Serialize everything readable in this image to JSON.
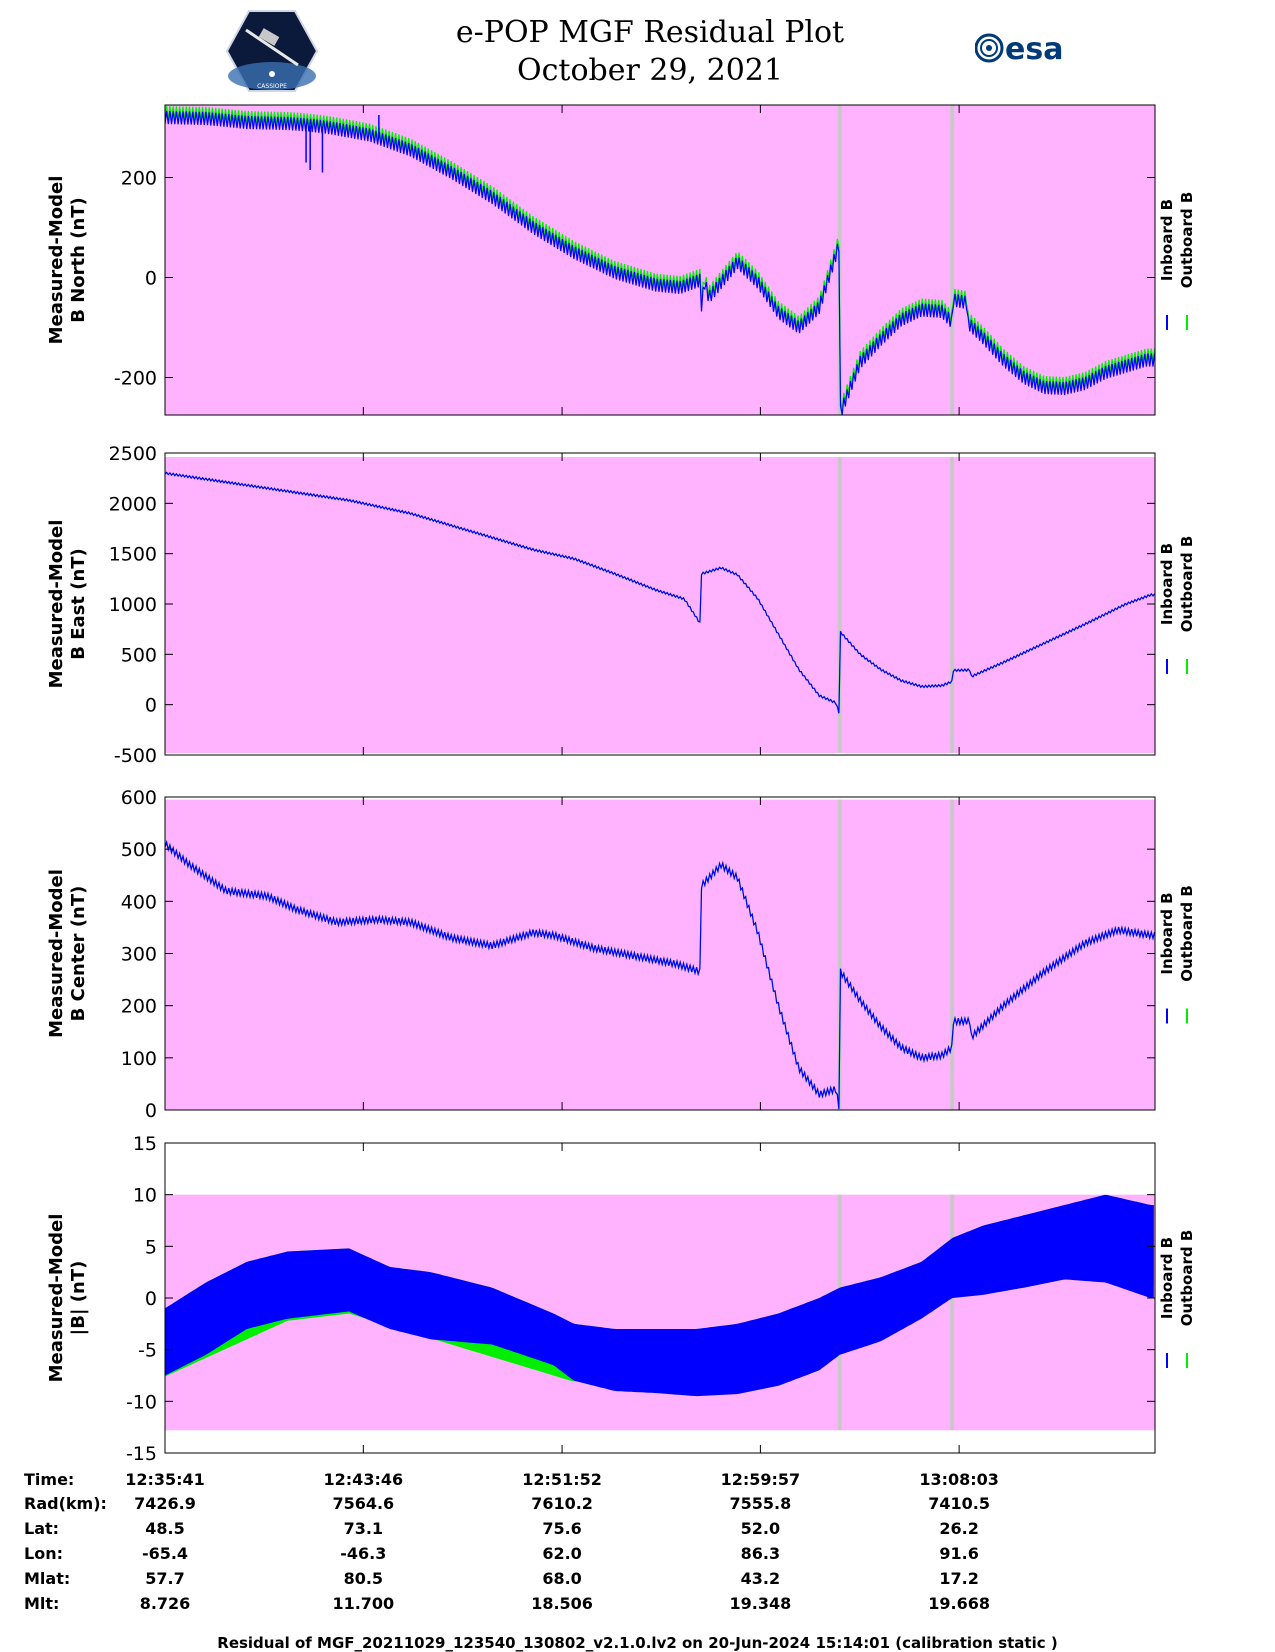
{
  "header": {
    "title_line1": "e-POP MGF Residual Plot",
    "title_line2": "October 29, 2021",
    "esa_logo_text": "esa",
    "cassiope_logo_text": "CASSIOPE"
  },
  "colors": {
    "background_fill": "#ffb3ff",
    "inboard": "#0000ff",
    "outboard": "#00ee00",
    "gap_marker": "#c8c8c8"
  },
  "chart_data": [
    {
      "type": "line",
      "ylabel_line1": "Measured-Model",
      "ylabel_line2": "B North (nT)",
      "ylim": [
        -275,
        345
      ],
      "yticks": [
        -200,
        0,
        200
      ],
      "shaded_range": [
        -275,
        345
      ],
      "gap_markers_s": [
        1650,
        1925
      ],
      "series": [
        {
          "name": "Inboard B",
          "color": "blue",
          "points": [
            [
              0,
              320
            ],
            [
              100,
              318
            ],
            [
              200,
              310
            ],
            [
              300,
              308
            ],
            [
              350,
              305
            ],
            [
              400,
              300
            ],
            [
              500,
              285
            ],
            [
              600,
              255
            ],
            [
              700,
              210
            ],
            [
              800,
              160
            ],
            [
              900,
              100
            ],
            [
              1000,
              50
            ],
            [
              1100,
              10
            ],
            [
              1200,
              -15
            ],
            [
              1260,
              -20
            ],
            [
              1320,
              -10
            ],
            [
              1310,
              -5
            ],
            [
              1312,
              -55
            ],
            [
              1330,
              -40
            ],
            [
              1400,
              30
            ],
            [
              1450,
              -10
            ],
            [
              1500,
              -70
            ],
            [
              1550,
              -100
            ],
            [
              1600,
              -60
            ],
            [
              1650,
              70
            ],
            [
              1652,
              -270
            ],
            [
              1700,
              -170
            ],
            [
              1750,
              -125
            ],
            [
              1800,
              -85
            ],
            [
              1850,
              -65
            ],
            [
              1900,
              -68
            ],
            [
              1925,
              -90
            ],
            [
              1926,
              -45
            ],
            [
              1960,
              -50
            ],
            [
              1962,
              -90
            ],
            [
              2000,
              -120
            ],
            [
              2050,
              -165
            ],
            [
              2100,
              -200
            ],
            [
              2150,
              -220
            ],
            [
              2200,
              -222
            ],
            [
              2250,
              -212
            ],
            [
              2300,
              -190
            ],
            [
              2400,
              -165
            ]
          ]
        },
        {
          "name": "Outboard B",
          "color": "green",
          "offset": 10
        }
      ],
      "oscillation": 13,
      "spikes": [
        [
          345,
          230
        ],
        [
          355,
          215
        ],
        [
          385,
          210
        ],
        [
          523,
          325
        ]
      ]
    },
    {
      "type": "line",
      "ylabel_line1": "Measured-Model",
      "ylabel_line2": "B East (nT)",
      "ylim": [
        -500,
        2500
      ],
      "yticks": [
        -500,
        0,
        500,
        1000,
        1500,
        2000,
        2500
      ],
      "shaded_range": [
        -480,
        2460
      ],
      "gap_markers_s": [
        1650,
        1925
      ],
      "series": [
        {
          "name": "Inboard B",
          "color": "blue",
          "points": [
            [
              0,
              2300
            ],
            [
              150,
              2210
            ],
            [
              300,
              2120
            ],
            [
              450,
              2030
            ],
            [
              600,
              1900
            ],
            [
              750,
              1720
            ],
            [
              900,
              1540
            ],
            [
              1000,
              1450
            ],
            [
              1100,
              1300
            ],
            [
              1200,
              1140
            ],
            [
              1270,
              1050
            ],
            [
              1310,
              800
            ],
            [
              1312,
              1300
            ],
            [
              1360,
              1360
            ],
            [
              1400,
              1290
            ],
            [
              1450,
              1050
            ],
            [
              1500,
              700
            ],
            [
              1550,
              350
            ],
            [
              1600,
              90
            ],
            [
              1640,
              20
            ],
            [
              1650,
              -100
            ],
            [
              1652,
              720
            ],
            [
              1700,
              500
            ],
            [
              1750,
              350
            ],
            [
              1800,
              240
            ],
            [
              1850,
              180
            ],
            [
              1900,
              190
            ],
            [
              1925,
              230
            ],
            [
              1926,
              340
            ],
            [
              1970,
              345
            ],
            [
              1972,
              280
            ],
            [
              2050,
              420
            ],
            [
              2150,
              610
            ],
            [
              2250,
              800
            ],
            [
              2350,
              1000
            ],
            [
              2410,
              1090
            ]
          ]
        },
        {
          "name": "Outboard B",
          "color": "green",
          "offset": 0
        }
      ],
      "oscillation": 10,
      "spikes": []
    },
    {
      "type": "line",
      "ylabel_line1": "Measured-Model",
      "ylabel_line2": "B Center (nT)",
      "ylim": [
        0,
        600
      ],
      "yticks": [
        0,
        100,
        200,
        300,
        400,
        500,
        600
      ],
      "shaded_range": [
        0,
        595
      ],
      "gap_markers_s": [
        1650,
        1925
      ],
      "series": [
        {
          "name": "Inboard B",
          "color": "blue",
          "points": [
            [
              0,
              510
            ],
            [
              60,
              470
            ],
            [
              150,
              420
            ],
            [
              250,
              410
            ],
            [
              320,
              385
            ],
            [
              420,
              360
            ],
            [
              520,
              365
            ],
            [
              600,
              360
            ],
            [
              700,
              330
            ],
            [
              800,
              315
            ],
            [
              900,
              340
            ],
            [
              950,
              335
            ],
            [
              1050,
              310
            ],
            [
              1150,
              295
            ],
            [
              1250,
              280
            ],
            [
              1310,
              265
            ],
            [
              1312,
              430
            ],
            [
              1360,
              470
            ],
            [
              1400,
              445
            ],
            [
              1450,
              340
            ],
            [
              1500,
              200
            ],
            [
              1550,
              80
            ],
            [
              1600,
              30
            ],
            [
              1640,
              40
            ],
            [
              1650,
              0
            ],
            [
              1652,
              265
            ],
            [
              1700,
              210
            ],
            [
              1750,
              160
            ],
            [
              1800,
              120
            ],
            [
              1850,
              100
            ],
            [
              1900,
              105
            ],
            [
              1925,
              120
            ],
            [
              1926,
              170
            ],
            [
              1970,
              170
            ],
            [
              1972,
              140
            ],
            [
              2050,
              200
            ],
            [
              2150,
              265
            ],
            [
              2250,
              320
            ],
            [
              2330,
              345
            ],
            [
              2410,
              335
            ]
          ]
        },
        {
          "name": "Outboard B",
          "color": "green",
          "offset": 0
        }
      ],
      "oscillation": 6,
      "spikes": []
    },
    {
      "type": "area",
      "ylabel_line1": "Measured-Model",
      "ylabel_line2": "|B| (nT)",
      "ylim": [
        -15,
        15
      ],
      "yticks": [
        -15,
        -10,
        -5,
        0,
        5,
        10,
        15
      ],
      "shaded_range": [
        -12.8,
        10
      ],
      "gap_markers_s": [
        1650,
        1925
      ],
      "band": {
        "upper": [
          [
            0,
            -1
          ],
          [
            100,
            1.5
          ],
          [
            200,
            3.5
          ],
          [
            300,
            4.5
          ],
          [
            450,
            4.8
          ],
          [
            550,
            3
          ],
          [
            650,
            2.5
          ],
          [
            800,
            1
          ],
          [
            950,
            -1.5
          ],
          [
            1000,
            -2.5
          ],
          [
            1100,
            -3
          ],
          [
            1200,
            -3
          ],
          [
            1300,
            -3
          ],
          [
            1400,
            -2.5
          ],
          [
            1500,
            -1.5
          ],
          [
            1600,
            0
          ],
          [
            1650,
            1
          ],
          [
            1750,
            2
          ],
          [
            1850,
            3.5
          ],
          [
            1925,
            5.8
          ],
          [
            2000,
            7
          ],
          [
            2100,
            8
          ],
          [
            2200,
            9
          ],
          [
            2300,
            10
          ],
          [
            2410,
            9
          ]
        ],
        "lower": [
          [
            0,
            -7.5
          ],
          [
            100,
            -5.5
          ],
          [
            200,
            -3
          ],
          [
            300,
            -2
          ],
          [
            450,
            -1.3
          ],
          [
            550,
            -3
          ],
          [
            650,
            -4
          ],
          [
            800,
            -4.5
          ],
          [
            950,
            -6.5
          ],
          [
            1000,
            -8
          ],
          [
            1100,
            -9
          ],
          [
            1200,
            -9.2
          ],
          [
            1300,
            -9.5
          ],
          [
            1400,
            -9.3
          ],
          [
            1500,
            -8.5
          ],
          [
            1600,
            -7
          ],
          [
            1650,
            -5.5
          ],
          [
            1750,
            -4.2
          ],
          [
            1850,
            -2
          ],
          [
            1925,
            0
          ],
          [
            2000,
            0.3
          ],
          [
            2100,
            1
          ],
          [
            2200,
            1.8
          ],
          [
            2300,
            1.5
          ],
          [
            2410,
            0
          ]
        ],
        "green_lower": [
          [
            0,
            -7.6
          ],
          [
            300,
            -2.2
          ],
          [
            450,
            -1.5
          ],
          [
            1000,
            -8.1
          ],
          [
            1900,
            -0.5
          ],
          [
            1950,
            0.5
          ],
          [
            2050,
            1.2
          ],
          [
            2200,
            2.8
          ],
          [
            2300,
            2.6
          ],
          [
            2410,
            1.2
          ]
        ]
      },
      "series": [
        {
          "name": "Inboard B",
          "color": "blue"
        },
        {
          "name": "Outboard B",
          "color": "green"
        }
      ]
    }
  ],
  "time_axis": {
    "duration_s": 2421,
    "tick_seconds": [
      0,
      485,
      971,
      1456,
      1942,
      2421
    ]
  },
  "ephemeris": {
    "row_labels": [
      "Time:",
      "Rad(km):",
      "Lat:",
      "Lon:",
      "Mlat:",
      "Mlt:"
    ],
    "columns": [
      [
        "12:35:41",
        "7426.9",
        "48.5",
        "-65.4",
        "57.7",
        "8.726"
      ],
      [
        "12:43:46",
        "7564.6",
        "73.1",
        "-46.3",
        "80.5",
        "11.700"
      ],
      [
        "12:51:52",
        "7610.2",
        "75.6",
        "62.0",
        "68.0",
        "18.506"
      ],
      [
        "12:59:57",
        "7555.8",
        "52.0",
        "86.3",
        "43.2",
        "19.348"
      ],
      [
        "13:08:03",
        "7410.5",
        "26.2",
        "91.6",
        "17.2",
        "19.668"
      ]
    ]
  },
  "footer": {
    "text": "Residual of MGF_20211029_123540_130802_v2.1.0.lv2 on 20-Jun-2024 15:14:01 (calibration static )"
  }
}
